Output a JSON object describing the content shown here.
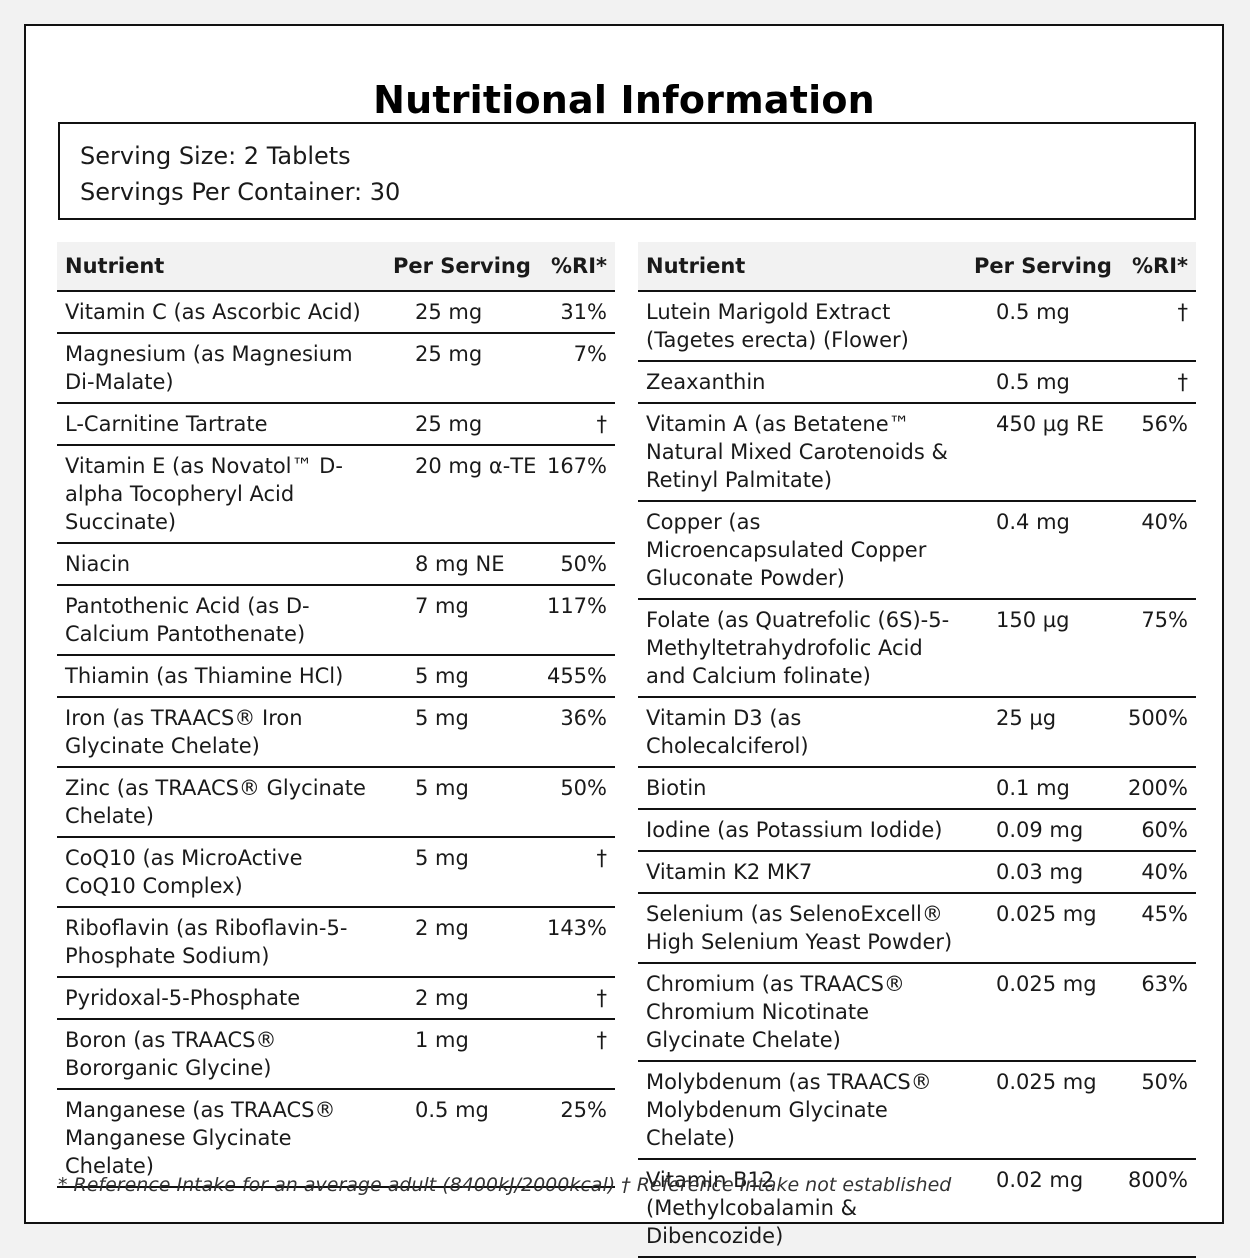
{
  "title": "Nutritional Information",
  "serving": {
    "size": "Serving Size: 2 Tablets",
    "per_container": "Servings Per Container: 30"
  },
  "headers": {
    "nutrient": "Nutrient",
    "per_serving": "Per Serving",
    "ri": "%RI*"
  },
  "left_rows": [
    {
      "name": "Vitamin C (as Ascorbic Acid)",
      "amount": "25 mg",
      "ri": "31%"
    },
    {
      "name": "Magnesium (as Magnesium Di-Malate)",
      "amount": "25 mg",
      "ri": "7%"
    },
    {
      "name": "L-Carnitine Tartrate",
      "amount": "25 mg",
      "ri": "†"
    },
    {
      "name": "Vitamin E (as Novatol™ D-alpha Tocopheryl Acid Succinate)",
      "amount": "20 mg α-TE",
      "ri": "167%"
    },
    {
      "name": "Niacin",
      "amount": "8 mg NE",
      "ri": "50%"
    },
    {
      "name": "Pantothenic Acid (as D-Calcium Pantothenate)",
      "amount": "7 mg",
      "ri": "117%"
    },
    {
      "name": "Thiamin (as Thiamine HCl)",
      "amount": "5 mg",
      "ri": "455%"
    },
    {
      "name": "Iron (as TRAACS® Iron Glycinate Chelate)",
      "amount": "5 mg",
      "ri": "36%"
    },
    {
      "name": "Zinc (as TRAACS® Glycinate Chelate)",
      "amount": "5 mg",
      "ri": "50%"
    },
    {
      "name": "CoQ10 (as MicroActive CoQ10 Complex)",
      "amount": "5 mg",
      "ri": "†"
    },
    {
      "name": "Riboflavin (as Riboflavin-5-Phosphate Sodium)",
      "amount": "2 mg",
      "ri": "143%"
    },
    {
      "name": "Pyridoxal-5-Phosphate",
      "amount": "2 mg",
      "ri": "†"
    },
    {
      "name": "Boron (as TRAACS® Bororganic Glycine)",
      "amount": "1 mg",
      "ri": "†"
    },
    {
      "name": "Manganese (as TRAACS® Manganese Glycinate Chelate)",
      "amount": "0.5 mg",
      "ri": "25%"
    }
  ],
  "right_rows": [
    {
      "name": "Lutein Marigold Extract (Tagetes erecta) (Flower)",
      "amount": "0.5 mg",
      "ri": "†"
    },
    {
      "name": "Zeaxanthin",
      "amount": "0.5 mg",
      "ri": "†"
    },
    {
      "name": "Vitamin A (as Betatene™ Natural Mixed Carotenoids & Retinyl Palmitate)",
      "amount": "450 µg RE",
      "ri": "56%"
    },
    {
      "name": "Copper (as Microencapsulated Copper Gluconate Powder)",
      "amount": "0.4 mg",
      "ri": "40%"
    },
    {
      "name": "Folate (as Quatrefolic (6S)-5-Methyltetrahydrofolic Acid and Calcium folinate)",
      "amount": "150 µg",
      "ri": "75%"
    },
    {
      "name": "Vitamin D3 (as Cholecalciferol)",
      "amount": "25 µg",
      "ri": "500%"
    },
    {
      "name": "Biotin",
      "amount": "0.1 mg",
      "ri": "200%"
    },
    {
      "name": "Iodine (as Potassium Iodide)",
      "amount": "0.09 mg",
      "ri": "60%"
    },
    {
      "name": "Vitamin K2 MK7",
      "amount": "0.03 mg",
      "ri": "40%"
    },
    {
      "name": "Selenium (as SelenoExcell® High Selenium Yeast Powder)",
      "amount": "0.025 mg",
      "ri": "45%"
    },
    {
      "name": "Chromium (as TRAACS® Chromium Nicotinate Glycinate Chelate)",
      "amount": "0.025 mg",
      "ri": "63%"
    },
    {
      "name": "Molybdenum (as TRAACS® Molybdenum Glycinate Chelate)",
      "amount": "0.025 mg",
      "ri": "50%"
    },
    {
      "name": "Vitamin B12 (Methylcobalamin & Dibencozide)",
      "amount": "0.02 mg",
      "ri": "800%"
    }
  ],
  "footnote": "* Reference Intake for an average adult (8400kJ/2000kcal) † Reference Intake not established"
}
